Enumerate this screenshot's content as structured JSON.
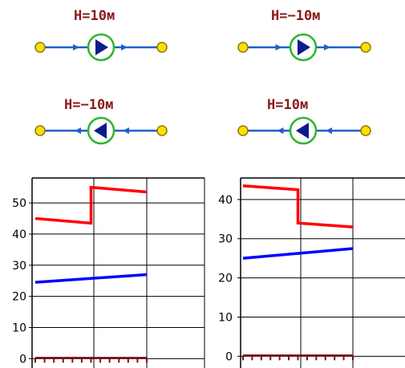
{
  "colors": {
    "label": "#8b1a1a",
    "pipe": "#1f5fc8",
    "node": "#ffe000",
    "pump_ring": "#2fb52f",
    "pump_arrow": "#0a1c8c",
    "grid": "#000000",
    "red_series": "#ff0000",
    "blue_series": "#0000ff",
    "baseline": "#7a1010"
  },
  "pumps": [
    {
      "label": "H=10м",
      "direction": "right"
    },
    {
      "label": "H=−10м",
      "direction": "right"
    },
    {
      "label": "H=−10м",
      "direction": "left"
    },
    {
      "label": "H=10м",
      "direction": "left"
    }
  ],
  "chart_data": [
    {
      "type": "line",
      "yticks": [
        "0",
        "10",
        "20",
        "30",
        "40",
        "50"
      ],
      "ylim": [
        -3,
        58
      ],
      "series": [
        {
          "color": "#ff0000",
          "points": [
            [
              0,
              45
            ],
            [
              1,
              43.5
            ],
            [
              1,
              55
            ],
            [
              2,
              53.5
            ]
          ]
        },
        {
          "color": "#0000ff",
          "points": [
            [
              0,
              24.5
            ],
            [
              2,
              27
            ]
          ]
        }
      ]
    },
    {
      "type": "line",
      "yticks": [
        "0",
        "10",
        "20",
        "30",
        "40"
      ],
      "ylim": [
        -3,
        45.5
      ],
      "series": [
        {
          "color": "#ff0000",
          "points": [
            [
              0,
              43.5
            ],
            [
              1,
              42.5
            ],
            [
              1,
              34
            ],
            [
              2,
              33
            ]
          ]
        },
        {
          "color": "#0000ff",
          "points": [
            [
              0,
              25
            ],
            [
              2,
              27.5
            ]
          ]
        }
      ]
    }
  ]
}
